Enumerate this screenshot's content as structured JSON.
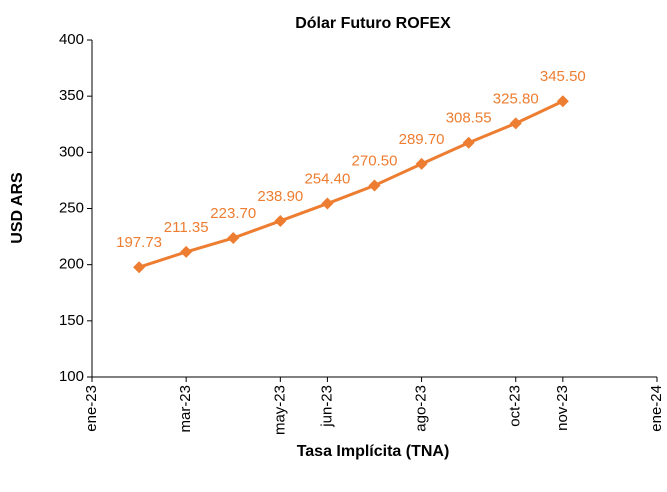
{
  "chart_data": {
    "type": "line",
    "title": "Dólar Futuro ROFEX",
    "x_label": "Tasa Implícita (TNA)",
    "y_label": "USD ARS",
    "x": [
      "2023-02",
      "2023-03",
      "2023-04",
      "2023-05",
      "2023-06",
      "2023-07",
      "2023-08",
      "2023-09",
      "2023-10",
      "2023-11"
    ],
    "series": [
      {
        "name": "Dólar Futuro ROFEX",
        "color": "#ed7d31",
        "values": [
          197.73,
          211.35,
          223.7,
          238.9,
          254.4,
          270.5,
          289.7,
          308.55,
          325.8,
          345.5
        ],
        "value_labels": [
          "197.73",
          "211.35",
          "223.70",
          "238.90",
          "254.40",
          "270.50",
          "289.70",
          "308.55",
          "325.80",
          "345.50"
        ]
      }
    ],
    "xlim": [
      "2023-01",
      "2024-01"
    ],
    "xticks": [
      {
        "value": "2023-01",
        "label": "ene-23"
      },
      {
        "value": "2023-03",
        "label": "mar-23"
      },
      {
        "value": "2023-05",
        "label": "may-23"
      },
      {
        "value": "2023-06",
        "label": "jun-23"
      },
      {
        "value": "2023-08",
        "label": "ago-23"
      },
      {
        "value": "2023-10",
        "label": "oct-23"
      },
      {
        "value": "2023-11",
        "label": "nov-23"
      },
      {
        "value": "2024-01",
        "label": "ene-24"
      }
    ],
    "ylim": [
      100,
      400
    ],
    "yticks": [
      100,
      150,
      200,
      250,
      300,
      350,
      400
    ]
  }
}
